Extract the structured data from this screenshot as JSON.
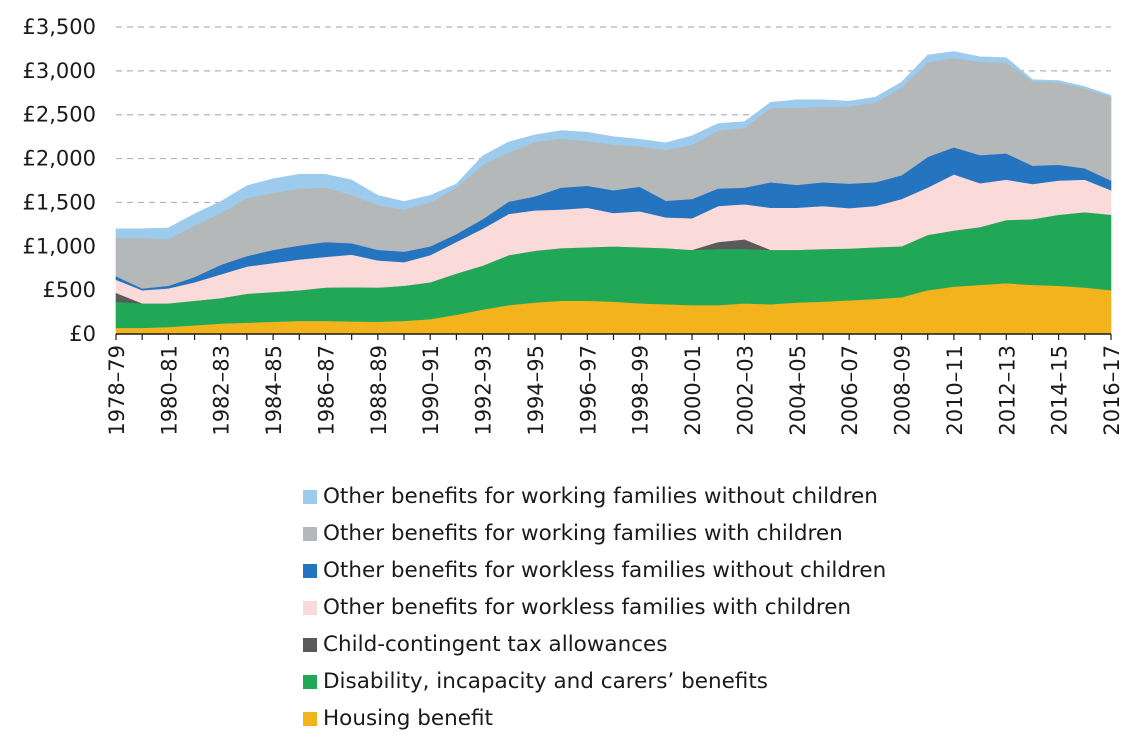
{
  "chart_data": {
    "type": "area",
    "stacked": true,
    "x": [
      "1978–79",
      "1979–80",
      "1980–81",
      "1981–82",
      "1982–83",
      "1983–84",
      "1984–85",
      "1985–86",
      "1986–87",
      "1987–88",
      "1988–89",
      "1989–90",
      "1990–91",
      "1991–92",
      "1992–93",
      "1993–94",
      "1994–95",
      "1995–96",
      "1996–97",
      "1997–98",
      "1998–99",
      "1999–00",
      "2000–01",
      "2001–02",
      "2002–03",
      "2003–04",
      "2004–05",
      "2005–06",
      "2006–07",
      "2007–08",
      "2008–09",
      "2009–10",
      "2010–11",
      "2011–12",
      "2012–13",
      "2013–14",
      "2014–15",
      "2015–16",
      "2016–17"
    ],
    "x_tick_labels": [
      "1978–79",
      "1980–81",
      "1982–83",
      "1984–85",
      "1986–87",
      "1988–89",
      "1990–91",
      "1992–93",
      "1994–95",
      "1996–97",
      "1998–99",
      "2000–01",
      "2002–03",
      "2004–05",
      "2006–07",
      "2008–09",
      "2010–11",
      "2012–13",
      "2014–15",
      "2016–17"
    ],
    "y_tick_labels": [
      "£0",
      "£500",
      "£1,000",
      "£1,500",
      "£2,000",
      "£2,500",
      "£3,000",
      "£3,500"
    ],
    "ylim": [
      0,
      3500
    ],
    "ytick_step": 500,
    "grid": true,
    "legend_position": "bottom",
    "series": [
      {
        "name": "Housing benefit",
        "color": "#f2b31d",
        "values": [
          70,
          70,
          80,
          100,
          120,
          130,
          140,
          150,
          150,
          145,
          140,
          150,
          170,
          220,
          280,
          330,
          360,
          380,
          380,
          370,
          350,
          340,
          330,
          330,
          350,
          340,
          360,
          370,
          385,
          400,
          420,
          500,
          540,
          560,
          580,
          560,
          550,
          530,
          500
        ]
      },
      {
        "name": "Disability, incapacity and carers’ benefits",
        "color": "#21a857",
        "values": [
          300,
          280,
          270,
          280,
          290,
          330,
          340,
          350,
          380,
          390,
          390,
          400,
          420,
          470,
          500,
          570,
          590,
          600,
          610,
          630,
          640,
          640,
          630,
          640,
          620,
          620,
          600,
          600,
          590,
          590,
          580,
          630,
          640,
          660,
          720,
          750,
          810,
          860,
          860
        ]
      },
      {
        "name": "Child-contingent tax allowances",
        "color": "#5a5a5a",
        "values": [
          100,
          0,
          0,
          0,
          0,
          0,
          0,
          0,
          0,
          0,
          0,
          0,
          0,
          0,
          0,
          0,
          0,
          0,
          0,
          0,
          0,
          0,
          0,
          80,
          110,
          0,
          0,
          0,
          0,
          0,
          0,
          0,
          0,
          0,
          0,
          0,
          0,
          0,
          0
        ]
      },
      {
        "name": "Other benefits for workless families with children",
        "color": "#fbdada",
        "values": [
          150,
          150,
          170,
          210,
          270,
          310,
          330,
          350,
          350,
          370,
          310,
          270,
          310,
          360,
          420,
          470,
          460,
          440,
          450,
          380,
          410,
          350,
          360,
          410,
          400,
          480,
          480,
          490,
          460,
          470,
          540,
          540,
          640,
          500,
          460,
          400,
          390,
          370,
          280
        ]
      },
      {
        "name": "Other benefits for workless families without children",
        "color": "#2574c0",
        "values": [
          40,
          20,
          30,
          60,
          110,
          120,
          150,
          160,
          170,
          130,
          120,
          120,
          100,
          90,
          110,
          140,
          160,
          250,
          250,
          260,
          280,
          190,
          220,
          200,
          190,
          290,
          260,
          270,
          280,
          270,
          270,
          350,
          310,
          320,
          300,
          210,
          180,
          130,
          110
        ]
      },
      {
        "name": "Other benefits for working families with children",
        "color": "#b5b8b8",
        "values": [
          440,
          580,
          530,
          590,
          590,
          660,
          650,
          650,
          620,
          550,
          510,
          480,
          500,
          530,
          620,
          560,
          620,
          560,
          510,
          520,
          460,
          580,
          620,
          660,
          680,
          850,
          880,
          860,
          880,
          910,
          1000,
          1080,
          1020,
          1060,
          1040,
          960,
          940,
          910,
          950
        ]
      },
      {
        "name": "Other benefits for working families without children",
        "color": "#9ccbed",
        "values": [
          100,
          100,
          130,
          130,
          130,
          140,
          160,
          160,
          150,
          170,
          110,
          90,
          80,
          40,
          100,
          120,
          80,
          90,
          100,
          90,
          80,
          80,
          100,
          80,
          70,
          60,
          90,
          80,
          60,
          60,
          60,
          80,
          70,
          60,
          50,
          20,
          20,
          20,
          20
        ]
      }
    ]
  }
}
